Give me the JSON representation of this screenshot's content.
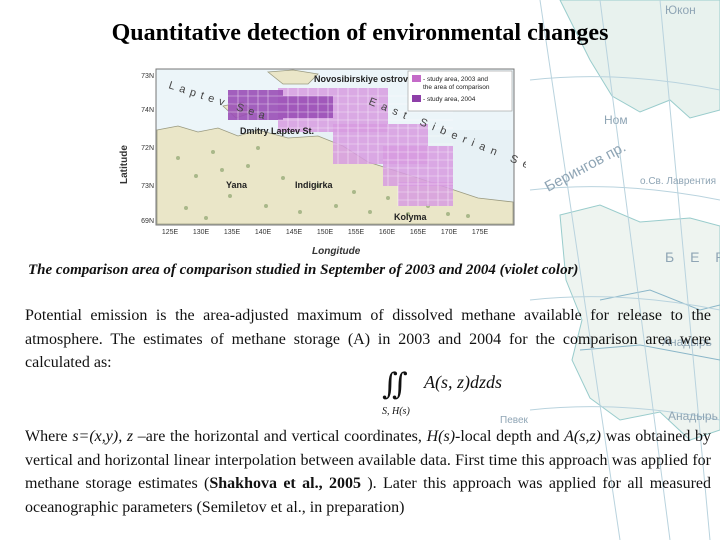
{
  "page": {
    "title": "Quantitative detection of environmental changes"
  },
  "background_map": {
    "labels": [
      "Юкон",
      "Ном",
      "Берингов пр.",
      "о.Св. Лаврентия",
      "Анадырь",
      "Певек",
      "Б Е Р",
      "Анадырь"
    ]
  },
  "figure": {
    "lat_axis_label": "Latitude",
    "lon_axis_label": "Longitude",
    "lat_ticks": [
      "73N",
      "74N",
      "72N",
      "73N",
      "69N"
    ],
    "lon_ticks": [
      "125E",
      "130E",
      "135E",
      "140E",
      "145E",
      "150E",
      "155E",
      "160E",
      "165E",
      "170E",
      "175E"
    ],
    "place_labels": {
      "novosibirsk": "Novosibirskiye ostrova",
      "laptev": "Laptev Sea",
      "dmitry": "Dmitry Laptev St.",
      "east_siberian": "East Siberian Sea",
      "yana": "Yana",
      "indigirka": "Indigirka",
      "kolyma": "Kolyma"
    },
    "legend": [
      {
        "label": "- study area, 2003 and the area of comparison",
        "color": "#c46bc8"
      },
      {
        "label": "- study area, 2004",
        "color": "#8e3fa8"
      }
    ]
  },
  "caption": "The comparison area  of comparison studied in September of 2003 and 2004  (violet  color)",
  "paragraph1": "Potential emission is the area-adjusted maximum of dissolved  methane available for release to the atmosphere. The estimates of methane storage (A) in 2003 and 2004 for the comparison area were calculated as:",
  "formula": {
    "integrand": "A(s, z)dzds",
    "lower_limit": "S, H(s)"
  },
  "paragraph2": {
    "p1": "Where  ",
    "s_def": "s=(x,y), z",
    "p2": " –are the horizontal and vertical coordinates,  ",
    "h_def": "H(s)",
    "p3": "-local depth and ",
    "a_def": "A(s,z)",
    "p4": " was obtained by vertical and horizontal linear interpolation between available data. First time this approach was applied for methane storage estimates (",
    "ref1": "Shakhova et al., 2005 ",
    "p5": ").   Later this approach was applied for all measured oceanographic parameters (Semiletov et al., in preparation)"
  }
}
